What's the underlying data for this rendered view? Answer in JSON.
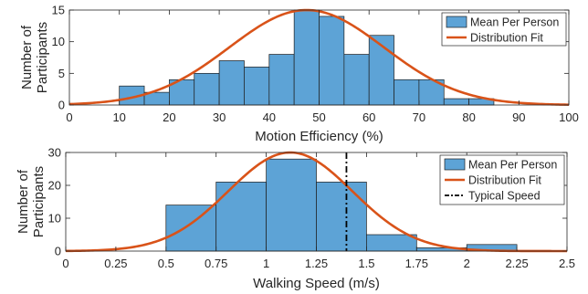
{
  "chart_data": [
    {
      "type": "bar",
      "title": "",
      "xlabel": "Motion Efficiency (%)",
      "ylabel": "Number of Participants",
      "xlim": [
        0,
        100
      ],
      "ylim": [
        0,
        15
      ],
      "xticks": [
        0,
        10,
        20,
        30,
        40,
        50,
        60,
        70,
        80,
        90,
        100
      ],
      "yticks": [
        0,
        5,
        10,
        15
      ],
      "grid": false,
      "legend_position": "top-right",
      "bin_edges": [
        10,
        15,
        20,
        25,
        30,
        35,
        40,
        45,
        50,
        55,
        60,
        65,
        70,
        75,
        80,
        85
      ],
      "counts": [
        3,
        2,
        4,
        5,
        7,
        6,
        8,
        15,
        14,
        8,
        11,
        4,
        4,
        1,
        1
      ],
      "series": [
        {
          "name": "Mean Per Person",
          "kind": "histogram",
          "color": "#5DA3D6"
        },
        {
          "name": "Distribution Fit",
          "kind": "normal-curve",
          "color": "#D95319",
          "mean": 47.5,
          "sd": 15.5,
          "peak": 15
        }
      ]
    },
    {
      "type": "bar",
      "title": "",
      "xlabel": "Walking Speed (m/s)",
      "ylabel": "Number of Participants",
      "xlim": [
        0,
        2.5
      ],
      "ylim": [
        0,
        30
      ],
      "xticks": [
        0,
        0.25,
        0.5,
        0.75,
        1,
        1.25,
        1.5,
        1.75,
        2,
        2.25,
        2.5
      ],
      "yticks": [
        0,
        10,
        20,
        30
      ],
      "grid": false,
      "legend_position": "top-right",
      "bin_edges": [
        0.5,
        0.75,
        1.0,
        1.25,
        1.5,
        1.75,
        2.0,
        2.25
      ],
      "counts": [
        14,
        21,
        28,
        21,
        5,
        1,
        2
      ],
      "series": [
        {
          "name": "Mean Per Person",
          "kind": "histogram",
          "color": "#5DA3D6"
        },
        {
          "name": "Distribution Fit",
          "kind": "normal-curve",
          "color": "#D95319",
          "mean": 1.12,
          "sd": 0.31,
          "peak": 30
        },
        {
          "name": "Typical Speed",
          "kind": "vertical-line",
          "color": "#000000",
          "x": 1.4
        }
      ]
    }
  ]
}
